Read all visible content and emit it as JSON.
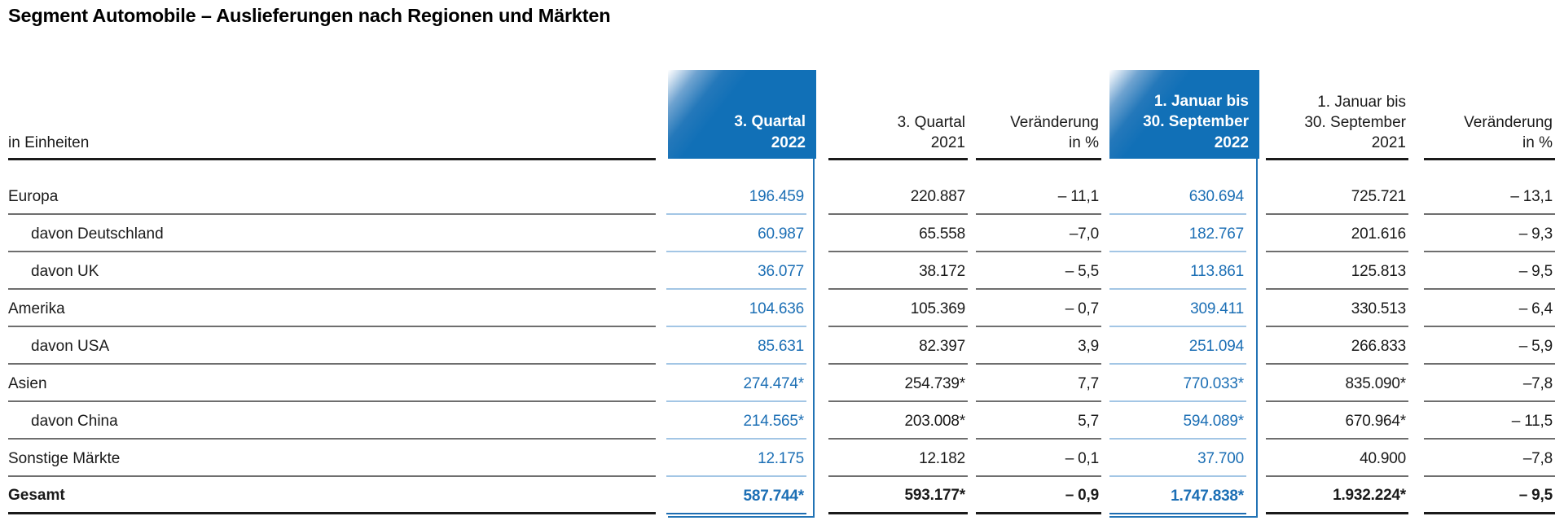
{
  "title": "Segment Automobile – Auslieferungen nach Regionen und Märkten",
  "colors": {
    "highlight_fill": "#1170b7",
    "highlight_text": "#1c6fb5",
    "highlight_rule": "#a3c6e5",
    "frame_blue": "#2273b5",
    "row_rule_gray": "#6e6e6e",
    "text_black": "#1a1a1a"
  },
  "table": {
    "unit_label": "in Einheiten",
    "columns": [
      {
        "id": "q3-2022",
        "highlight": true,
        "label_lines": [
          "3. Quartal",
          "2022"
        ]
      },
      {
        "id": "q3-2021",
        "highlight": false,
        "label_lines": [
          "3. Quartal",
          "2021"
        ]
      },
      {
        "id": "chg-q3",
        "highlight": false,
        "label_lines": [
          "Veränderung",
          "in %"
        ]
      },
      {
        "id": "ytd-2022",
        "highlight": true,
        "label_lines": [
          "1. Januar bis",
          "30. September",
          "2022"
        ]
      },
      {
        "id": "ytd-2021",
        "highlight": false,
        "label_lines": [
          "1. Januar bis",
          "30. September",
          "2021"
        ]
      },
      {
        "id": "chg-ytd",
        "highlight": false,
        "label_lines": [
          "Veränderung",
          "in %"
        ]
      }
    ],
    "rows": [
      {
        "label": "Europa",
        "indent": false,
        "bold": false,
        "values": [
          "196.459",
          "220.887",
          "– 11,1",
          "630.694",
          "725.721",
          "– 13,1"
        ]
      },
      {
        "label": "davon Deutschland",
        "indent": true,
        "bold": false,
        "values": [
          "60.987",
          "65.558",
          "–7,0",
          "182.767",
          "201.616",
          "– 9,3"
        ]
      },
      {
        "label": "davon UK",
        "indent": true,
        "bold": false,
        "values": [
          "36.077",
          "38.172",
          "– 5,5",
          "113.861",
          "125.813",
          "– 9,5"
        ]
      },
      {
        "label": "Amerika",
        "indent": false,
        "bold": false,
        "values": [
          "104.636",
          "105.369",
          "– 0,7",
          "309.411",
          "330.513",
          "– 6,4"
        ]
      },
      {
        "label": "davon USA",
        "indent": true,
        "bold": false,
        "values": [
          "85.631",
          "82.397",
          "3,9",
          "251.094",
          "266.833",
          "– 5,9"
        ]
      },
      {
        "label": "Asien",
        "indent": false,
        "bold": false,
        "values": [
          "274.474*",
          "254.739*",
          "7,7",
          "770.033*",
          "835.090*",
          "–7,8"
        ]
      },
      {
        "label": "davon China",
        "indent": true,
        "bold": false,
        "values": [
          "214.565*",
          "203.008*",
          "5,7",
          "594.089*",
          "670.964*",
          "– 11,5"
        ]
      },
      {
        "label": "Sonstige Märkte",
        "indent": false,
        "bold": false,
        "values": [
          "12.175",
          "12.182",
          "– 0,1",
          "37.700",
          "40.900",
          "–7,8"
        ]
      },
      {
        "label": "Gesamt",
        "indent": false,
        "bold": true,
        "values": [
          "587.744*",
          "593.177*",
          "– 0,9",
          "1.747.838*",
          "1.932.224*",
          "– 9,5"
        ]
      }
    ]
  }
}
